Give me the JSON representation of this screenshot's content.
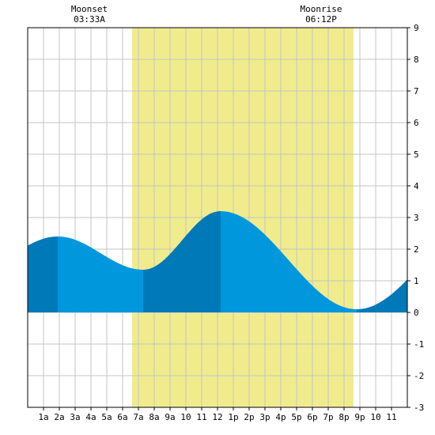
{
  "chart_data": {
    "type": "area",
    "title": "",
    "xlabel": "",
    "ylabel": "",
    "x_range": [
      0,
      24
    ],
    "ylim": [
      -3,
      9
    ],
    "grid": true,
    "x_tick_labels": [
      {
        "hour": 1,
        "label": "1a"
      },
      {
        "hour": 2,
        "label": "2a"
      },
      {
        "hour": 3,
        "label": "3a"
      },
      {
        "hour": 4,
        "label": "4a"
      },
      {
        "hour": 5,
        "label": "5a"
      },
      {
        "hour": 6,
        "label": "6a"
      },
      {
        "hour": 7,
        "label": "7a"
      },
      {
        "hour": 8,
        "label": "8a"
      },
      {
        "hour": 9,
        "label": "9a"
      },
      {
        "hour": 10,
        "label": "10"
      },
      {
        "hour": 11,
        "label": "11"
      },
      {
        "hour": 12,
        "label": "12"
      },
      {
        "hour": 13,
        "label": "1p"
      },
      {
        "hour": 14,
        "label": "2p"
      },
      {
        "hour": 15,
        "label": "3p"
      },
      {
        "hour": 16,
        "label": "4p"
      },
      {
        "hour": 17,
        "label": "5p"
      },
      {
        "hour": 18,
        "label": "6p"
      },
      {
        "hour": 19,
        "label": "7p"
      },
      {
        "hour": 20,
        "label": "8p"
      },
      {
        "hour": 21,
        "label": "9p"
      },
      {
        "hour": 22,
        "label": "10"
      },
      {
        "hour": 23,
        "label": "11"
      }
    ],
    "y_ticks": [
      -3,
      -2,
      -1,
      0,
      1,
      2,
      3,
      4,
      5,
      6,
      7,
      8,
      9
    ],
    "daylight": {
      "start": 6.6,
      "end": 20.6
    },
    "moon_events": [
      {
        "name": "Moonset",
        "time": "03:33A",
        "hour": 3.55
      },
      {
        "name": "Moonrise",
        "time": "06:12P",
        "hour": 18.2
      }
    ],
    "tide_extremes": [
      {
        "hour": 1.9,
        "height": 2.4,
        "kind": "high"
      },
      {
        "hour": 7.3,
        "height": 1.35,
        "kind": "low"
      },
      {
        "hour": 12.2,
        "height": 3.2,
        "kind": "high"
      },
      {
        "hour": 20.8,
        "height": 0.1,
        "kind": "low"
      }
    ],
    "series": [
      {
        "x": [
          0,
          1,
          2,
          3,
          4,
          5,
          6,
          7,
          8,
          9,
          10,
          11,
          12,
          13,
          14,
          15,
          16,
          17,
          18,
          19,
          20,
          21,
          22,
          23,
          24
        ],
        "values": [
          1.99,
          2.31,
          2.4,
          2.28,
          2.01,
          1.69,
          1.43,
          1.35,
          1.52,
          2.04,
          2.68,
          3.12,
          3.2,
          3.11,
          2.82,
          2.38,
          1.85,
          1.32,
          0.82,
          0.42,
          0.16,
          0.1,
          0.35,
          0.88,
          1.53
        ]
      }
    ],
    "colors": {
      "daylight": "#f0ec8e",
      "tide_light": "#0097dd",
      "tide_dark": "#0079b9",
      "grid": "#c4c4c4",
      "axis": "#000000",
      "background": "#ffffff"
    }
  }
}
